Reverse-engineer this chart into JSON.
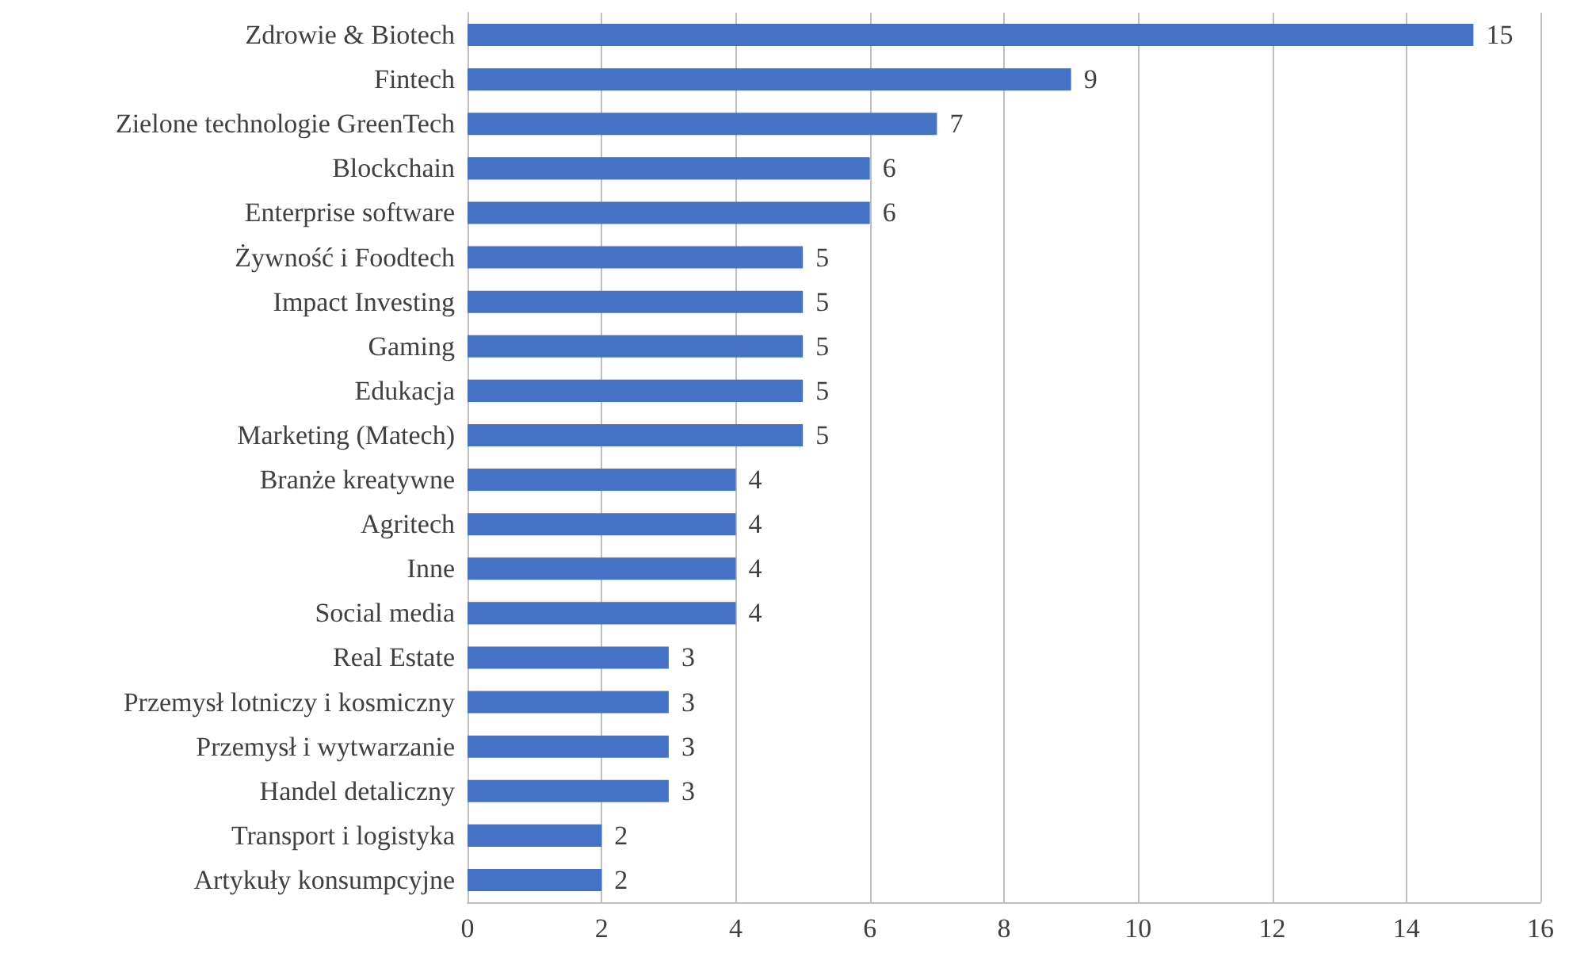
{
  "chart_data": {
    "type": "bar",
    "orientation": "horizontal",
    "categories": [
      "Zdrowie & Biotech",
      "Fintech",
      "Zielone technologie GreenTech",
      "Blockchain",
      "Enterprise software",
      "Żywność i Foodtech",
      "Impact Investing",
      "Gaming",
      "Edukacja",
      "Marketing (Matech)",
      "Branże kreatywne",
      "Agritech",
      "Inne",
      "Social media",
      "Real Estate",
      "Przemysł lotniczy i kosmiczny",
      "Przemysł i wytwarzanie",
      "Handel detaliczny",
      "Transport i logistyka",
      "Artykuły konsumpcyjne"
    ],
    "values": [
      15,
      9,
      7,
      6,
      6,
      5,
      5,
      5,
      5,
      5,
      4,
      4,
      4,
      4,
      3,
      3,
      3,
      3,
      2,
      2
    ],
    "color": "#4472c4",
    "xlim": [
      0,
      16
    ],
    "xticks": [
      0,
      2,
      4,
      6,
      8,
      10,
      12,
      14,
      16
    ],
    "grid": "x",
    "data_labels": true
  }
}
